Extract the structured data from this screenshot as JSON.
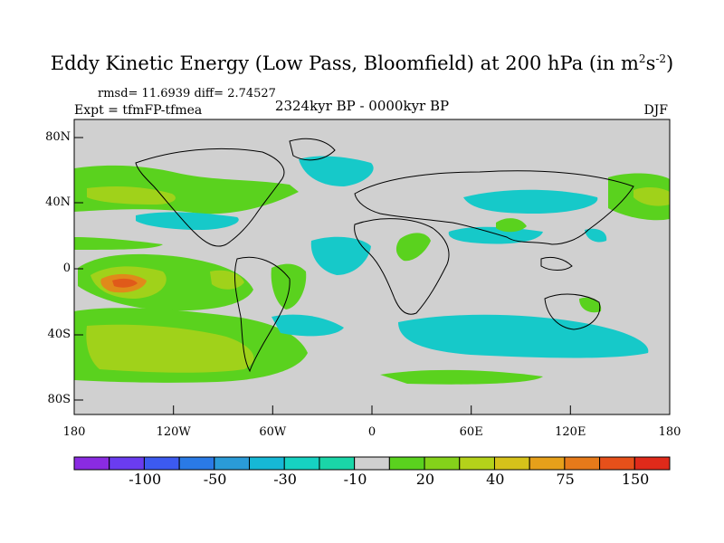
{
  "title": {
    "main": "Eddy Kinetic Energy (Low Pass, Bloomfield) at 200 hPa (in m",
    "sup1": "2",
    "mid": "s",
    "sup2": "-2",
    "end": ")"
  },
  "stats": "rmsd= 11.6939 diff= 2.74527",
  "expt": "Expt = tfmFP-tfmea",
  "center_label": "2324kyr BP - 0000kyr BP",
  "season": "DJF",
  "lat_ticks": [
    "80N",
    "40N",
    "0",
    "40S",
    "80S"
  ],
  "lon_ticks": [
    "180",
    "120W",
    "60W",
    "0",
    "60E",
    "120E",
    "180"
  ],
  "colorbar": {
    "colors": [
      "#8a2be2",
      "#6a3cf0",
      "#3c5af0",
      "#2a7ae6",
      "#2a9bd8",
      "#16b8d6",
      "#16d2c2",
      "#1ad6a8",
      "#d0d0d0",
      "#5ad21e",
      "#84d21a",
      "#b4d21a",
      "#d6c21a",
      "#e6a01a",
      "#e67a1a",
      "#e6501a",
      "#e02a1a"
    ],
    "labels": [
      "-100",
      "-50",
      "-30",
      "-10",
      "20",
      "40",
      "75",
      "150"
    ]
  },
  "palette": {
    "background": "#d0d0d0",
    "cyan": "#16c9c9",
    "green": "#5ad21e",
    "yellowgreen": "#a0d21a",
    "orange": "#e08a1a",
    "red": "#e05a1a"
  }
}
